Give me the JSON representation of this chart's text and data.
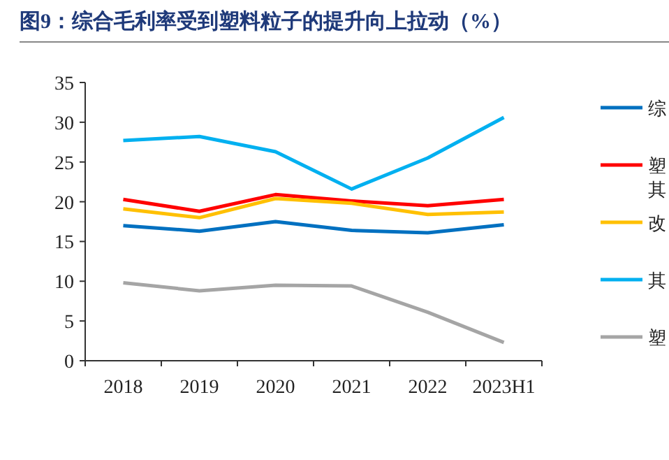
{
  "chart_data": {
    "type": "line",
    "title": "图9：综合毛利率受到塑料粒子的提升向上拉动（%）",
    "categories": [
      "2018",
      "2019",
      "2020",
      "2021",
      "2022",
      "2023H1"
    ],
    "series": [
      {
        "name": "综",
        "color": "#0070c0",
        "values": [
          17.0,
          16.3,
          17.5,
          16.4,
          16.1,
          17.1
        ]
      },
      {
        "name": "塑其",
        "color": "#ff0000",
        "values": [
          20.3,
          18.8,
          20.9,
          20.1,
          19.5,
          20.3
        ]
      },
      {
        "name": "改",
        "color": "#ffc000",
        "values": [
          19.1,
          18.0,
          20.4,
          19.8,
          18.4,
          18.7
        ]
      },
      {
        "name": "其",
        "color": "#00b0f0",
        "values": [
          27.7,
          28.2,
          26.3,
          21.6,
          25.5,
          30.6
        ]
      },
      {
        "name": "塑",
        "color": "#a5a5a5",
        "values": [
          9.8,
          8.8,
          9.5,
          9.4,
          6.1,
          2.3
        ]
      }
    ],
    "ylim": [
      0,
      35
    ],
    "yticks": [
      0,
      5,
      10,
      15,
      20,
      25,
      30,
      35
    ],
    "legend": "right",
    "grid": false,
    "marker": "none",
    "line_style": "solid"
  }
}
